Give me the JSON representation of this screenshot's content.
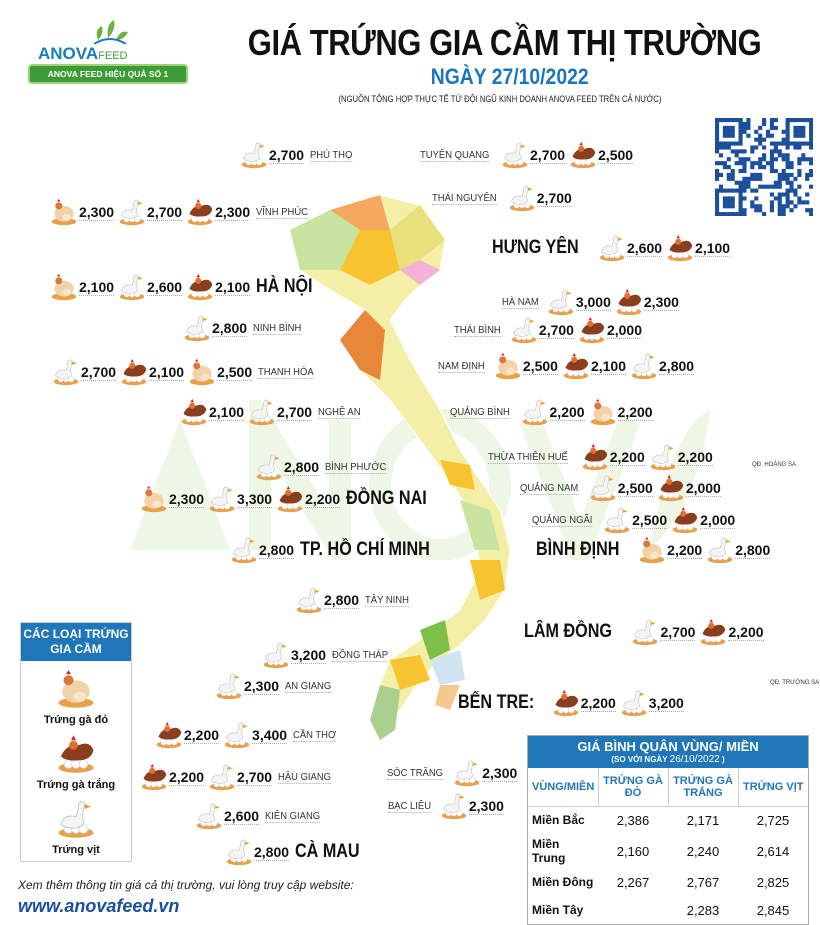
{
  "logo": {
    "brand": "ANOVA",
    "brand_sub": "FEED",
    "slogan": "ANOVA FEED HIỆU QUẢ SỐ 1"
  },
  "header": {
    "title": "GIÁ TRỨNG GIA CẦM THỊ TRƯỜNG",
    "date": "NGÀY 27/10/2022",
    "source": "(NGUỒN TỔNG HỢP THỰC TẾ TỪ ĐỘI NGŨ KINH DOANH ANOVA FEED TRÊN CẢ NƯỚC)"
  },
  "watermark": "ANOVA FEED",
  "colors": {
    "accent": "#1f76b8",
    "brand_green": "#3d9b35"
  },
  "icons": {
    "red": "red-hen-eggs-icon",
    "white": "brown-hen-white-eggs-icon",
    "duck": "duck-eggs-icon"
  },
  "provinces": [
    {
      "name": "PHÚ THỌ",
      "prices": [
        {
          "type": "duck",
          "price": "2,700"
        }
      ]
    },
    {
      "name": "TUYÊN QUANG",
      "prices": [
        {
          "type": "duck",
          "price": "2,700"
        },
        {
          "type": "white",
          "price": "2,500"
        }
      ]
    },
    {
      "name": "THÁI NGUYÊN",
      "prices": [
        {
          "type": "duck",
          "price": "2,700"
        }
      ]
    },
    {
      "name": "VĨNH PHÚC",
      "prices": [
        {
          "type": "red",
          "price": "2,300"
        },
        {
          "type": "duck",
          "price": "2,700"
        },
        {
          "type": "white",
          "price": "2,300"
        }
      ]
    },
    {
      "name": "HÀ NỘI",
      "prices": [
        {
          "type": "red",
          "price": "2,100"
        },
        {
          "type": "duck",
          "price": "2,600"
        },
        {
          "type": "white",
          "price": "2,100"
        }
      ]
    },
    {
      "name": "HƯNG YÊN",
      "prices": [
        {
          "type": "duck",
          "price": "2,600"
        },
        {
          "type": "white",
          "price": "2,100"
        }
      ]
    },
    {
      "name": "HÀ NAM",
      "prices": [
        {
          "type": "duck",
          "price": "3,000"
        },
        {
          "type": "white",
          "price": "2,300"
        }
      ]
    },
    {
      "name": "NINH BÌNH",
      "prices": [
        {
          "type": "duck",
          "price": "2,800"
        }
      ]
    },
    {
      "name": "THÁI BÌNH",
      "prices": [
        {
          "type": "duck",
          "price": "2,700"
        },
        {
          "type": "white",
          "price": "2,000"
        }
      ]
    },
    {
      "name": "THANH HÓA",
      "prices": [
        {
          "type": "duck",
          "price": "2,700"
        },
        {
          "type": "white",
          "price": "2,100"
        },
        {
          "type": "red",
          "price": "2,500"
        }
      ]
    },
    {
      "name": "NAM ĐỊNH",
      "prices": [
        {
          "type": "red",
          "price": "2,500"
        },
        {
          "type": "white",
          "price": "2,100"
        },
        {
          "type": "duck",
          "price": "2,800"
        }
      ]
    },
    {
      "name": "NGHỆ AN",
      "prices": [
        {
          "type": "white",
          "price": "2,100"
        },
        {
          "type": "duck",
          "price": "2,700"
        }
      ]
    },
    {
      "name": "QUẢNG BÌNH",
      "prices": [
        {
          "type": "duck",
          "price": "2,200"
        },
        {
          "type": "red",
          "price": "2,200"
        }
      ]
    },
    {
      "name": "THỪA THIÊN HUẾ",
      "prices": [
        {
          "type": "white",
          "price": "2,200"
        },
        {
          "type": "duck",
          "price": "2,200"
        }
      ]
    },
    {
      "name": "QUẢNG NAM",
      "prices": [
        {
          "type": "duck",
          "price": "2,500"
        },
        {
          "type": "white",
          "price": "2,000"
        }
      ]
    },
    {
      "name": "QUẢNG NGÃI",
      "prices": [
        {
          "type": "duck",
          "price": "2,500"
        },
        {
          "type": "white",
          "price": "2,000"
        }
      ]
    },
    {
      "name": "BÌNH PHƯỚC",
      "prices": [
        {
          "type": "duck",
          "price": "2,800"
        }
      ]
    },
    {
      "name": "ĐỒNG NAI",
      "prices": [
        {
          "type": "red",
          "price": "2,300"
        },
        {
          "type": "duck",
          "price": "3,300"
        },
        {
          "type": "white",
          "price": "2,200"
        }
      ]
    },
    {
      "name": "TP. HỒ CHÍ MINH",
      "prices": [
        {
          "type": "duck",
          "price": "2,800"
        }
      ]
    },
    {
      "name": "BÌNH ĐỊNH",
      "prices": [
        {
          "type": "red",
          "price": "2,200"
        },
        {
          "type": "duck",
          "price": "2,800"
        }
      ]
    },
    {
      "name": "TÂY NINH",
      "prices": [
        {
          "type": "duck",
          "price": "2,800"
        }
      ]
    },
    {
      "name": "LÂM ĐỒNG",
      "prices": [
        {
          "type": "duck",
          "price": "2,700"
        },
        {
          "type": "white",
          "price": "2,200"
        }
      ]
    },
    {
      "name": "ĐỒNG THÁP",
      "prices": [
        {
          "type": "duck",
          "price": "3,200"
        }
      ]
    },
    {
      "name": "AN GIANG",
      "prices": [
        {
          "type": "duck",
          "price": "2,300"
        }
      ]
    },
    {
      "name": "BẾN TRE:",
      "prices": [
        {
          "type": "white",
          "price": "2,200"
        },
        {
          "type": "duck",
          "price": "3,200"
        }
      ]
    },
    {
      "name": "CẦN THƠ",
      "prices": [
        {
          "type": "white",
          "price": "2,200"
        },
        {
          "type": "duck",
          "price": "3,400"
        }
      ]
    },
    {
      "name": "SÓC TRĂNG",
      "prices": [
        {
          "type": "duck",
          "price": "2,300"
        }
      ]
    },
    {
      "name": "HẬU GIANG",
      "prices": [
        {
          "type": "white",
          "price": "2,200"
        },
        {
          "type": "duck",
          "price": "2,700"
        }
      ]
    },
    {
      "name": "BẠC LIÊU",
      "prices": [
        {
          "type": "duck",
          "price": "2,300"
        }
      ]
    },
    {
      "name": "KIÊN GIANG",
      "prices": [
        {
          "type": "duck",
          "price": "2,600"
        }
      ]
    },
    {
      "name": "CÀ MAU",
      "prices": [
        {
          "type": "duck",
          "price": "2,800"
        }
      ]
    }
  ],
  "islands": {
    "hoang_sa": "QĐ. HOÀNG SA",
    "truong_sa": "QĐ. TRƯỜNG SA"
  },
  "legend": {
    "title": "CÁC LOẠI TRỨNG GIA CẦM",
    "items": [
      {
        "type": "red",
        "label": "Trứng gà đỏ"
      },
      {
        "type": "white",
        "label": "Trứng gà trắng"
      },
      {
        "type": "duck",
        "label": "Trứng vịt"
      }
    ]
  },
  "regional_table": {
    "title": "GIÁ BÌNH QUÂN VÙNG/ MIỀN",
    "compare_prefix": "(SO VỚI NGÀY",
    "compare_date": "26/10/2022",
    "compare_suffix": ")",
    "headers": [
      "VÙNG/MIỀN",
      "TRỨNG GÀ ĐỎ",
      "TRỨNG GÀ TRẮNG",
      "TRỨNG VỊT"
    ],
    "rows": [
      {
        "region": "Miền Bắc",
        "red": "2,386",
        "white": "2,171",
        "duck": "2,725"
      },
      {
        "region": "Miền Trung",
        "red": "2,160",
        "white": "2,240",
        "duck": "2,614"
      },
      {
        "region": "Miền Đông",
        "red": "2,267",
        "white": "2,767",
        "duck": "2,825"
      },
      {
        "region": "Miền Tây",
        "red": "",
        "white": "2,283",
        "duck": "2,845"
      }
    ]
  },
  "footer": {
    "note": "Xem thêm thông tin giá cả thị trường, vui lòng truy cập website:",
    "url": "www.anovafeed.vn"
  }
}
